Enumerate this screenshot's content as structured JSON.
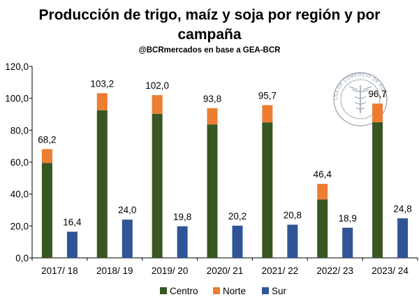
{
  "chart_data": {
    "type": "bar",
    "title_lines": [
      "Producción de trigo, maíz y soja por región y por",
      "campaña"
    ],
    "subtitle": "@BCRmercados en base a GEA-BCR",
    "categories": [
      "2017/ 18",
      "2018/ 19",
      "2019/ 20",
      "2020/ 21",
      "2021/ 22",
      "2022/ 23",
      "2023/ 24"
    ],
    "ylim": [
      0,
      120
    ],
    "yticks": [
      "0,0",
      "20,0",
      "40,0",
      "60,0",
      "80,0",
      "100,0",
      "120,0"
    ],
    "grid": false,
    "legend_position": "bottom",
    "series": [
      {
        "name": "Centro",
        "color": "#385723",
        "stack": "centro-norte",
        "values": [
          59.5,
          92.5,
          90.3,
          83.6,
          84.9,
          36.6,
          85.0
        ]
      },
      {
        "name": "Norte",
        "color": "#ed7d31",
        "stack": "centro-norte",
        "values": [
          8.7,
          10.7,
          11.7,
          10.2,
          10.8,
          9.8,
          11.7
        ]
      },
      {
        "name": "Sur",
        "color": "#2f5597",
        "stack": "sur",
        "values": [
          16.4,
          24.0,
          19.8,
          20.2,
          20.8,
          18.9,
          24.8
        ]
      }
    ],
    "stack_totals": [
      "68,2",
      "103,2",
      "102,0",
      "93,8",
      "95,7",
      "46,4",
      "96,7"
    ],
    "sur_labels": [
      "16,4",
      "24,0",
      "19,8",
      "20,2",
      "20,8",
      "18,9",
      "24,8"
    ]
  },
  "watermark": {
    "text": "BOLSA DE COMERCIO DE ROSARIO",
    "icon": "caduceus-seal-icon"
  }
}
